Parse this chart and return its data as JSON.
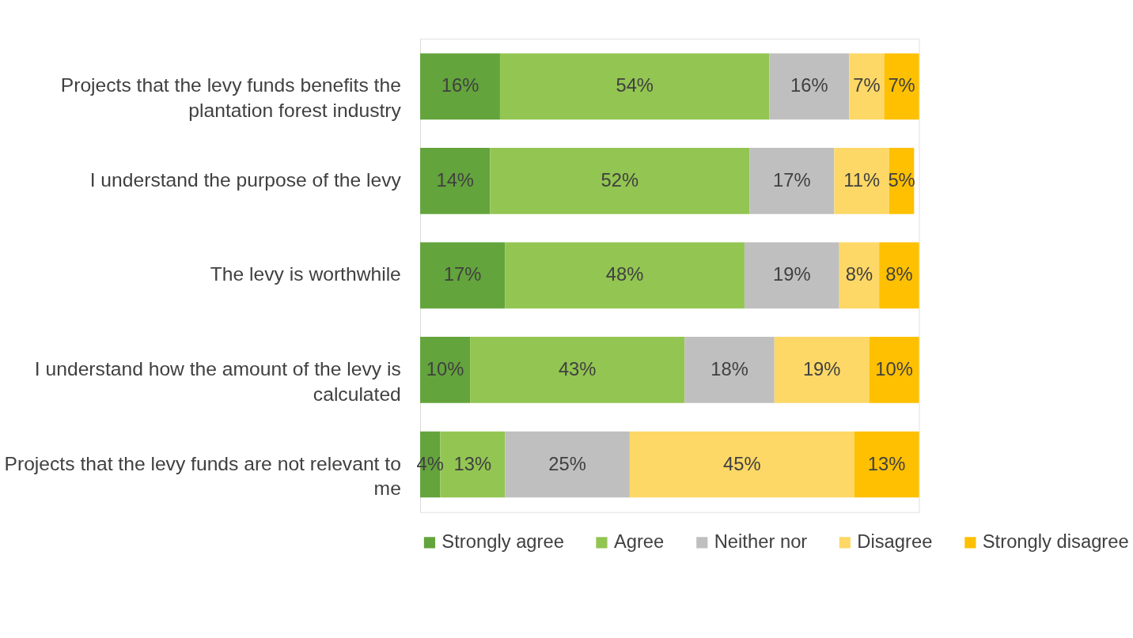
{
  "chart_data": {
    "type": "bar",
    "orientation": "horizontal",
    "stacked": true,
    "legend": "bottom",
    "grid": false,
    "tick_labels": "y",
    "xlim": [
      0,
      100
    ],
    "categories": [
      "Projects that the levy funds benefits the plantation forest industry",
      "I understand the purpose of the levy",
      "The levy is worthwhile",
      "I understand how the amount of the levy is calculated",
      "Projects that the levy funds are not relevant to me"
    ],
    "series": [
      {
        "name": "Strongly agree",
        "color": "#63a43c",
        "values": [
          16,
          14,
          17,
          10,
          4
        ],
        "value_labels": [
          "16%",
          "14%",
          "17%",
          "10%",
          "4%"
        ]
      },
      {
        "name": "Agree",
        "color": "#93c552",
        "values": [
          54,
          52,
          48,
          43,
          13
        ],
        "value_labels": [
          "54%",
          "52%",
          "48%",
          "43%",
          "13%"
        ]
      },
      {
        "name": "Neither nor",
        "color": "#bfbfbf",
        "values": [
          16,
          17,
          19,
          18,
          25
        ],
        "value_labels": [
          "16%",
          "17%",
          "19%",
          "18%",
          "25%"
        ]
      },
      {
        "name": "Disagree",
        "color": "#fdd866",
        "values": [
          7,
          11,
          8,
          19,
          45
        ],
        "value_labels": [
          "7%",
          "11%",
          "8%",
          "19%",
          "45%"
        ]
      },
      {
        "name": "Strongly disagree",
        "color": "#fec000",
        "values": [
          7,
          5,
          8,
          10,
          13
        ],
        "value_labels": [
          "7%",
          "5%",
          "8%",
          "10%",
          "13%"
        ]
      }
    ]
  }
}
